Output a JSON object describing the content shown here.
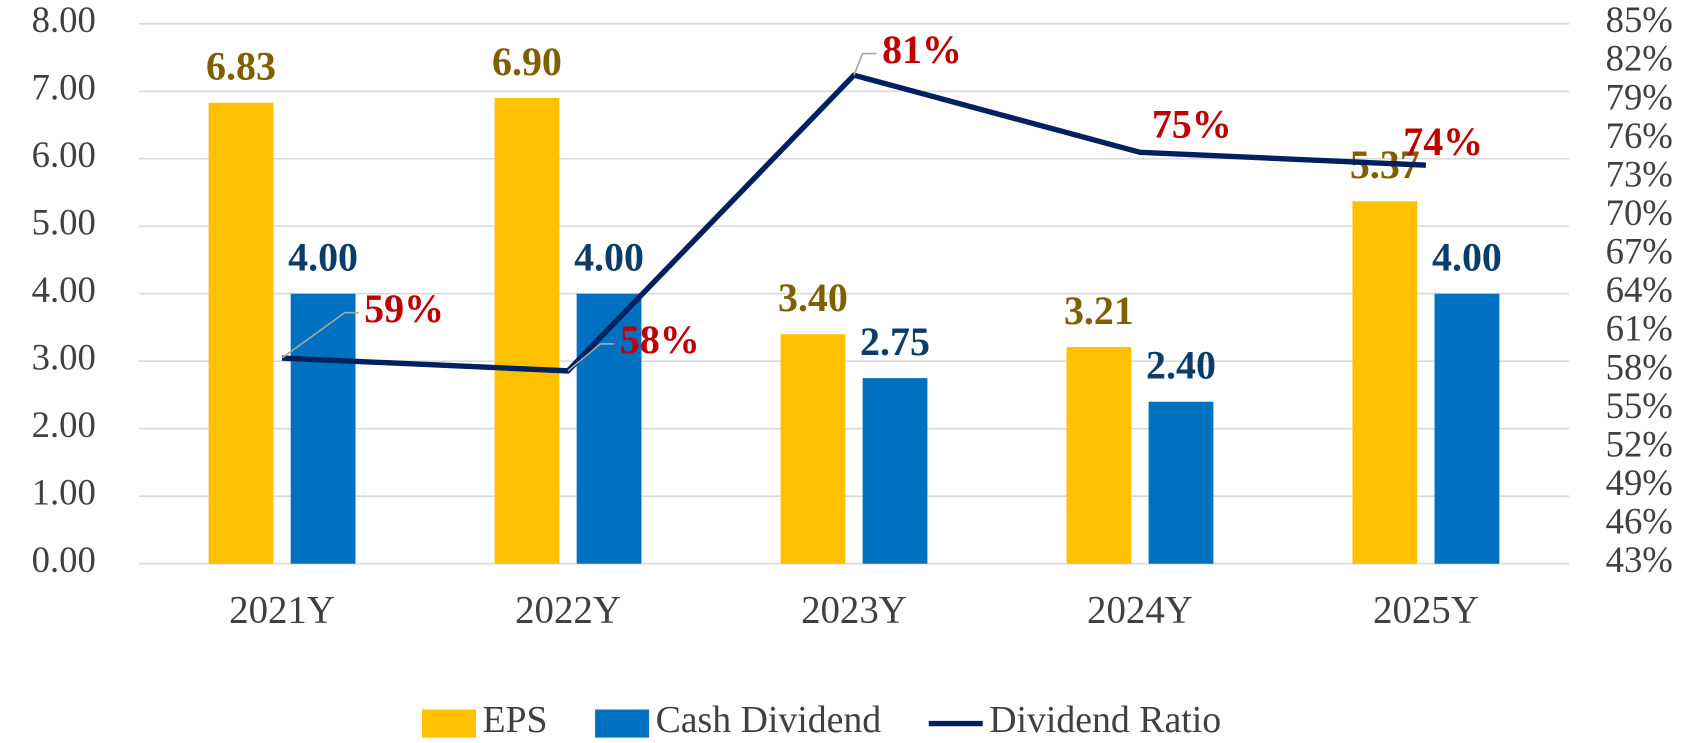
{
  "chart_data": {
    "type": "bar",
    "categories": [
      "2021Y",
      "2022Y",
      "2023Y",
      "2024Y",
      "2025Y"
    ],
    "series": [
      {
        "name": "EPS",
        "type": "bar",
        "color": "#ffc000",
        "label_color": "#7f6000",
        "values": [
          6.83,
          6.9,
          3.4,
          3.21,
          5.37
        ],
        "value_labels": [
          "6.83",
          "6.90",
          "3.40",
          "3.21",
          "5.37"
        ]
      },
      {
        "name": "Cash Dividend",
        "type": "bar",
        "color": "#0070c0",
        "label_color": "#0b3d6b",
        "values": [
          4,
          4,
          2.75,
          2.4,
          4
        ],
        "value_labels": [
          "4.00",
          "4.00",
          "2.75",
          "2.40",
          "4.00"
        ]
      },
      {
        "name": "Dividend Ratio",
        "type": "line",
        "axis": "y2",
        "color": "#002060",
        "label_color": "#c00000",
        "values": [
          59,
          58,
          81,
          75,
          74
        ],
        "value_labels": [
          "59%",
          "58%",
          "81%",
          "75%",
          "74%"
        ]
      }
    ],
    "ylim": [
      0,
      8
    ],
    "yticks": [
      {
        "value": 0,
        "label": "0.00"
      },
      {
        "value": 1,
        "label": "1.00"
      },
      {
        "value": 2,
        "label": "2.00"
      },
      {
        "value": 3,
        "label": "3.00"
      },
      {
        "value": 4,
        "label": "4.00"
      },
      {
        "value": 5,
        "label": "5.00"
      },
      {
        "value": 6,
        "label": "6.00"
      },
      {
        "value": 7,
        "label": "7.00"
      },
      {
        "value": 8,
        "label": "8.00"
      }
    ],
    "y2lim": [
      43,
      85
    ],
    "y2ticks": [
      {
        "value": 43,
        "label": "43%"
      },
      {
        "value": 46,
        "label": "46%"
      },
      {
        "value": 49,
        "label": "49%"
      },
      {
        "value": 52,
        "label": "52%"
      },
      {
        "value": 55,
        "label": "55%"
      },
      {
        "value": 58,
        "label": "58%"
      },
      {
        "value": 61,
        "label": "61%"
      },
      {
        "value": 64,
        "label": "64%"
      },
      {
        "value": 67,
        "label": "67%"
      },
      {
        "value": 70,
        "label": "70%"
      },
      {
        "value": 73,
        "label": "73%"
      },
      {
        "value": 76,
        "label": "76%"
      },
      {
        "value": 79,
        "label": "79%"
      },
      {
        "value": 82,
        "label": "82%"
      },
      {
        "value": 85,
        "label": "85%"
      }
    ],
    "grid": true,
    "legend": "bottom"
  }
}
